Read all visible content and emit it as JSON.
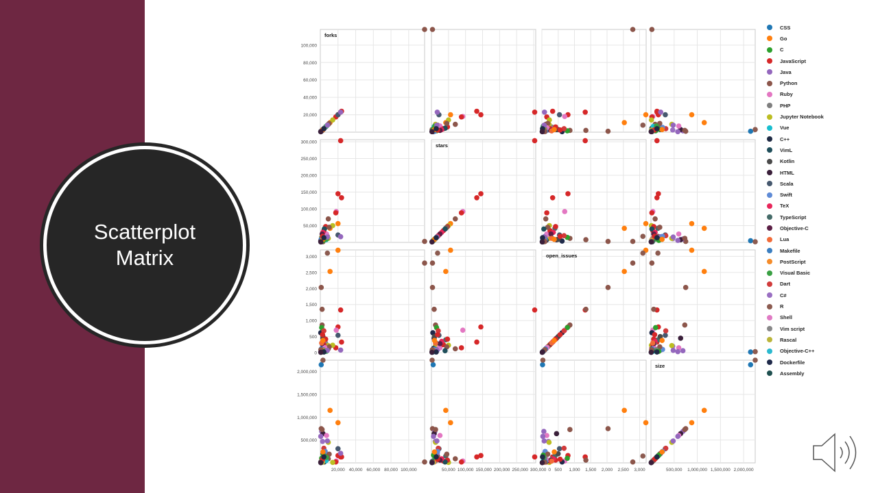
{
  "slide": {
    "title": "Scatterplot Matrix"
  },
  "chart_data": {
    "type": "scatter",
    "title": "Scatterplot Matrix",
    "variables": [
      {
        "name": "forks",
        "domain": [
          0,
          118000
        ],
        "ticks": [
          20000,
          40000,
          60000,
          80000,
          100000
        ]
      },
      {
        "name": "stars",
        "domain": [
          0,
          306000
        ],
        "ticks": [
          50000,
          100000,
          150000,
          200000,
          250000,
          300000
        ]
      },
      {
        "name": "open_issues",
        "domain": [
          0,
          3200
        ],
        "ticks": [
          0,
          500,
          1000,
          1500,
          2000,
          2500,
          3000
        ]
      },
      {
        "name": "size",
        "domain": [
          0,
          2250000
        ],
        "ticks": [
          500000,
          1000000,
          1500000,
          2000000
        ]
      }
    ],
    "grid": true,
    "legend_position": "right",
    "legend": [
      {
        "label": "CSS",
        "color": "#1f77b4"
      },
      {
        "label": "Go",
        "color": "#ff7f0e"
      },
      {
        "label": "C",
        "color": "#2ca02c"
      },
      {
        "label": "JavaScript",
        "color": "#d62728"
      },
      {
        "label": "Java",
        "color": "#9467bd"
      },
      {
        "label": "Python",
        "color": "#8c564b"
      },
      {
        "label": "Ruby",
        "color": "#e377c2"
      },
      {
        "label": "PHP",
        "color": "#7f7f7f"
      },
      {
        "label": "Jupyter Notebook",
        "color": "#bcbd22"
      },
      {
        "label": "Vue",
        "color": "#17becf"
      },
      {
        "label": "C++",
        "color": "#1f2a44"
      },
      {
        "label": "VimL",
        "color": "#1f4e5a"
      },
      {
        "label": "Kotlin",
        "color": "#4a4a4a"
      },
      {
        "label": "HTML",
        "color": "#3a1f3a"
      },
      {
        "label": "Scala",
        "color": "#46586e"
      },
      {
        "label": "Swift",
        "color": "#5f8bd6"
      },
      {
        "label": "TeX",
        "color": "#e8265a"
      },
      {
        "label": "TypeScript",
        "color": "#456b68"
      },
      {
        "label": "Objective-C",
        "color": "#5b1f45"
      },
      {
        "label": "Lua",
        "color": "#f26b38"
      },
      {
        "label": "Makefile",
        "color": "#3b7fc1"
      },
      {
        "label": "PostScript",
        "color": "#f58c2a"
      },
      {
        "label": "Visual Basic",
        "color": "#3aa043"
      },
      {
        "label": "Dart",
        "color": "#d13b3b"
      },
      {
        "label": "C#",
        "color": "#9a6fc2"
      },
      {
        "label": "R",
        "color": "#8c5b50"
      },
      {
        "label": "Shell",
        "color": "#e07ac4"
      },
      {
        "label": "Vim script",
        "color": "#888888"
      },
      {
        "label": "Rascal",
        "color": "#bbb53a"
      },
      {
        "label": "Objective-C++",
        "color": "#2bb9cf"
      },
      {
        "label": "Dockerfile",
        "color": "#1f2a4a"
      },
      {
        "label": "Assembly",
        "color": "#1f5050"
      }
    ],
    "points": [
      [
        "Python",
        118000,
        3000,
        2790,
        20000
      ],
      [
        "JavaScript",
        23000,
        303000,
        1330,
        130000
      ],
      [
        "JavaScript",
        20000,
        145000,
        800,
        160000
      ],
      [
        "JavaScript",
        24000,
        133000,
        330,
        130000
      ],
      [
        "Ruby",
        18000,
        92000,
        700,
        40000
      ],
      [
        "JavaScript",
        17500,
        88000,
        150,
        20000
      ],
      [
        "Python",
        9000,
        70000,
        120,
        90000
      ],
      [
        "Go",
        20000,
        56000,
        3190,
        880000
      ],
      [
        "Go",
        11000,
        42000,
        2530,
        1150000
      ],
      [
        "R",
        8000,
        18000,
        3100,
        150000
      ],
      [
        "Python",
        1000,
        3000,
        2030,
        750000
      ],
      [
        "Python",
        2000,
        8000,
        1350,
        60000
      ],
      [
        "CSS",
        1000,
        5000,
        20,
        2150000
      ],
      [
        "R",
        3000,
        2000,
        30,
        2250000
      ],
      [
        "Scala",
        20000,
        22000,
        540,
        310000
      ],
      [
        "Java",
        23000,
        17000,
        80,
        210000
      ],
      [
        "Jupyter Notebook",
        14000,
        50000,
        230,
        10000
      ],
      [
        "TypeScript",
        5000,
        42000,
        400,
        150000
      ],
      [
        "Java",
        1500,
        10000,
        60,
        690000
      ],
      [
        "HTML",
        3000,
        8000,
        450,
        640000
      ],
      [
        "Ruby",
        7000,
        25000,
        150,
        600000
      ],
      [
        "Java",
        500,
        6000,
        30,
        580000
      ],
      [
        "Python",
        2000,
        12000,
        860,
        730000
      ],
      [
        "C",
        1500,
        15000,
        780,
        100000
      ],
      [
        "Dockerfile",
        500,
        4000,
        620,
        20000
      ],
      [
        "Dart",
        4000,
        20000,
        680,
        320000
      ],
      [
        "Kotlin",
        3000,
        9000,
        500,
        200000
      ],
      [
        "Vim script",
        6000,
        14000,
        300,
        80000
      ],
      [
        "C#",
        2500,
        11000,
        200,
        470000
      ],
      [
        "Swift",
        5500,
        18000,
        100,
        250000
      ],
      [
        "Jupyter Notebook",
        9000,
        12000,
        220,
        450000
      ],
      [
        "JavaScript",
        6000,
        47000,
        420,
        60000
      ],
      [
        "JavaScript",
        4000,
        35000,
        250,
        40000
      ],
      [
        "Python",
        10000,
        45000,
        180,
        190000
      ],
      [
        "C++",
        2000,
        6000,
        130,
        30000
      ],
      [
        "VimL",
        4500,
        40000,
        60,
        20000
      ],
      [
        "Shell",
        5000,
        22000,
        160,
        70000
      ],
      [
        "PHP",
        3500,
        15000,
        90,
        110000
      ],
      [
        "Vue",
        6500,
        8000,
        40,
        50000
      ],
      [
        "TeX",
        3000,
        30000,
        350,
        90000
      ],
      [
        "Objective-C",
        2000,
        25000,
        280,
        60000
      ],
      [
        "Lua",
        1500,
        12000,
        300,
        40000
      ],
      [
        "Makefile",
        1000,
        9000,
        110,
        25000
      ],
      [
        "PostScript",
        2500,
        7000,
        70,
        15000
      ],
      [
        "Visual Basic",
        7000,
        10000,
        45,
        120000
      ],
      [
        "Rascal",
        2000,
        4000,
        20,
        10000
      ],
      [
        "Objective-C++",
        800,
        3000,
        15,
        8000
      ],
      [
        "Assembly",
        1200,
        2000,
        50,
        30000
      ],
      [
        "C",
        3500,
        6000,
        40,
        170000
      ],
      [
        "JavaScript",
        2500,
        18000,
        560,
        80000
      ],
      [
        "Java",
        8000,
        16000,
        70,
        480000
      ],
      [
        "Python",
        600,
        2500,
        90,
        15000
      ],
      [
        "Go",
        3000,
        9000,
        380,
        240000
      ],
      [
        "C++",
        4000,
        14000,
        20,
        130000
      ],
      [
        "HTML",
        500,
        1500,
        10,
        5000
      ]
    ]
  }
}
